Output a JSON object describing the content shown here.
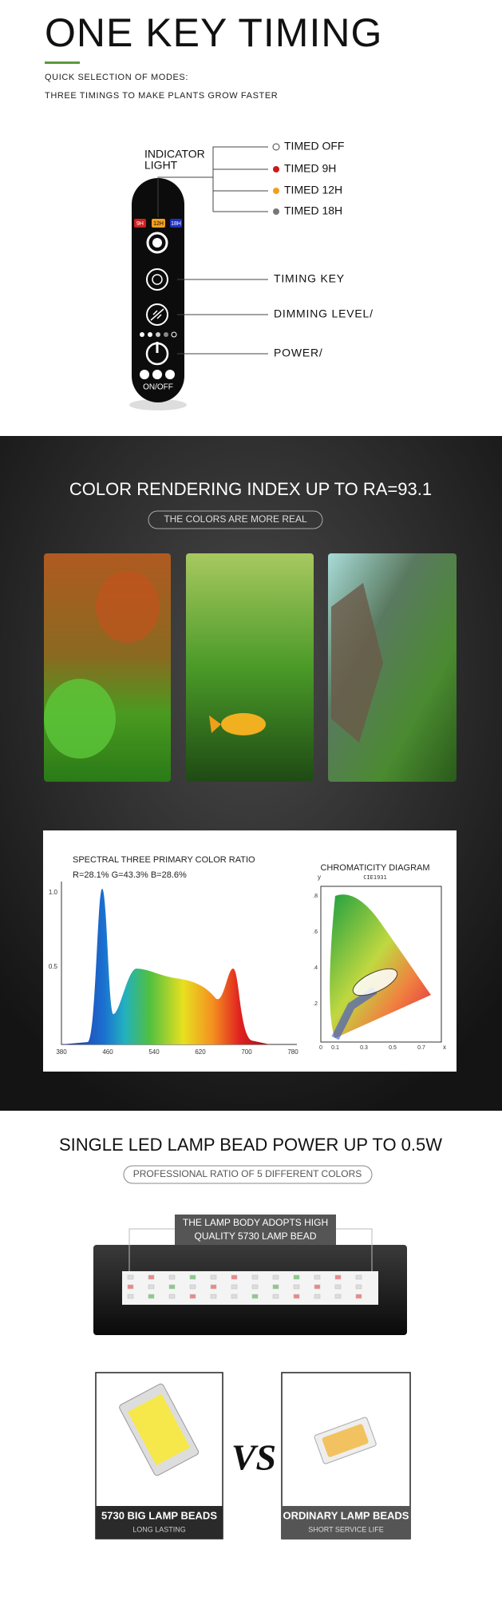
{
  "timing": {
    "title": "ONE KEY TIMING",
    "subtitle_lines": [
      "QUICK SELECTION OF MODES:",
      "THREE TIMINGS TO MAKE PLANTS GROW FASTER"
    ],
    "indicator_label": [
      "INDICATOR",
      "LIGHT"
    ],
    "remote_indicators": [
      "9H",
      "12H",
      "18H"
    ],
    "remote_onoff": "ON/OFF",
    "modes": [
      "TIMED OFF",
      "TIMED 9H",
      "TIMED 12H",
      "TIMED 18H"
    ],
    "keys": [
      "TIMING KEY",
      "DIMMING LEVEL/",
      "POWER/"
    ]
  },
  "color": {
    "title": "COLOR RENDERING INDEX UP TO RA=93.1",
    "badge": "THE COLORS ARE MORE REAL",
    "spectrum": {
      "title": "SPECTRAL THREE PRIMARY COLOR RATIO",
      "ratio": "R=28.1% G=43.3% B=28.6%",
      "yticks": [
        "1.0",
        "0.5"
      ],
      "xticks": [
        "380",
        "460",
        "540",
        "620",
        "700",
        "780"
      ]
    },
    "chromaticity": {
      "title": "CHROMATICITY DIAGRAM",
      "subtitle": "CIE1931",
      "axis_y": "y",
      "axis_x": "x",
      "yticks": [
        ".8",
        ".6",
        ".4",
        ".2"
      ],
      "xticks": [
        "0",
        "0.1",
        "0.3",
        "0.5",
        "0.7"
      ]
    }
  },
  "lamp": {
    "title": "SINGLE LED LAMP BEAD POWER UP TO 0.5W",
    "badge": "PROFESSIONAL RATIO OF 5 DIFFERENT COLORS",
    "callout_lines": [
      "THE LAMP BODY ADOPTS HIGH",
      "QUALITY 5730 LAMP BEAD"
    ],
    "vs": "VS",
    "comparison": [
      {
        "label": "5730 BIG LAMP BEADS",
        "note": "LONG LASTING"
      },
      {
        "label": "ORDINARY LAMP BEADS",
        "note": "SHORT SERVICE LIFE"
      }
    ]
  }
}
